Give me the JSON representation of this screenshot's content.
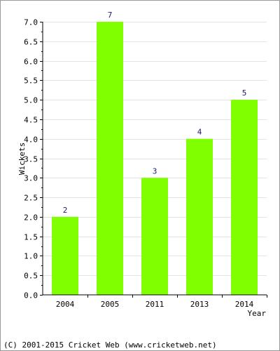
{
  "chart_data": {
    "type": "bar",
    "categories": [
      "2004",
      "2005",
      "2011",
      "2013",
      "2014"
    ],
    "values": [
      2,
      7,
      3,
      4,
      5
    ],
    "data_labels": [
      "2",
      "7",
      "3",
      "4",
      "5"
    ],
    "xlabel": "Year",
    "ylabel": "Wickets",
    "ylim": [
      0,
      7
    ],
    "yticks": [
      "0.0",
      "0.5",
      "1.0",
      "1.5",
      "2.0",
      "2.5",
      "3.0",
      "3.5",
      "4.0",
      "4.5",
      "5.0",
      "5.5",
      "6.0",
      "6.5",
      "7.0"
    ],
    "grid": true,
    "legend": "none",
    "bar_color": "#80ff00"
  },
  "footer": {
    "copyright": "(C) 2001-2015 Cricket Web (www.cricketweb.net)"
  }
}
